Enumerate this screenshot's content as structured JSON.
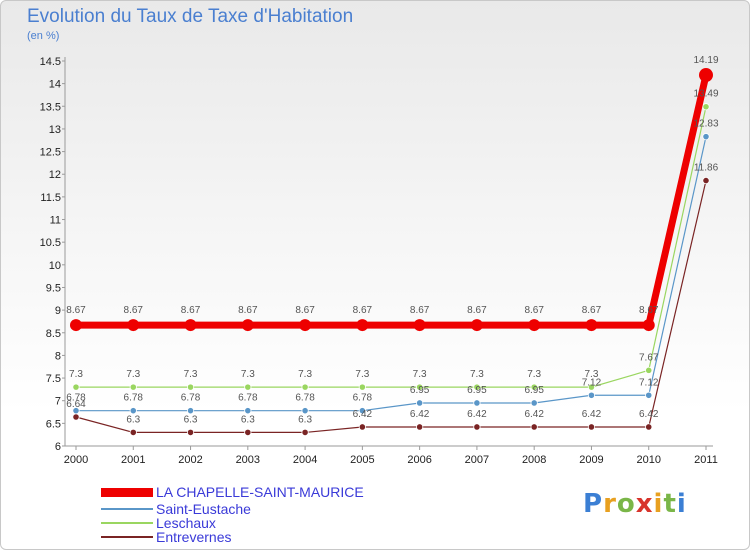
{
  "header": {
    "title": "Evolution du Taux de Taxe d'Habitation",
    "unit": "(en %)"
  },
  "chart_data": {
    "type": "line",
    "title": "Evolution du Taux de Taxe d'Habitation",
    "ylabel": "(en %)",
    "xlabel": "",
    "ylim": [
      6,
      14.5
    ],
    "yticks": [
      6,
      6.5,
      7,
      7.5,
      8,
      8.5,
      9,
      9.5,
      10,
      10.5,
      11,
      11.5,
      12,
      12.5,
      13,
      13.5,
      14,
      14.5
    ],
    "x": [
      "2000",
      "2001",
      "2002",
      "2003",
      "2004",
      "2005",
      "2006",
      "2007",
      "2008",
      "2009",
      "2010",
      "2011"
    ],
    "series": [
      {
        "name": "LA CHAPELLE-SAINT-MAURICE",
        "color": "#ee0000",
        "thick": true,
        "values": [
          8.67,
          8.67,
          8.67,
          8.67,
          8.67,
          8.67,
          8.67,
          8.67,
          8.67,
          8.67,
          8.67,
          14.19
        ],
        "labels": [
          "8.67",
          "8.67",
          "8.67",
          "8.67",
          "8.67",
          "8.67",
          "8.67",
          "8.67",
          "8.67",
          "8.67",
          "8.67",
          "14.19"
        ]
      },
      {
        "name": "Saint-Eustache",
        "color": "#5a96c8",
        "thick": false,
        "values": [
          6.78,
          6.78,
          6.78,
          6.78,
          6.78,
          6.78,
          6.95,
          6.95,
          6.95,
          7.12,
          7.12,
          12.83
        ],
        "labels": [
          "6.78",
          "6.78",
          "6.78",
          "6.78",
          "6.78",
          "6.78",
          "6.95",
          "6.95",
          "6.95",
          "7.12",
          "7.12",
          "12.83"
        ]
      },
      {
        "name": "Leschaux",
        "color": "#9ad660",
        "thick": false,
        "values": [
          7.3,
          7.3,
          7.3,
          7.3,
          7.3,
          7.3,
          7.3,
          7.3,
          7.3,
          7.3,
          7.67,
          13.49
        ],
        "labels": [
          "7.3",
          "7.3",
          "7.3",
          "7.3",
          "7.3",
          "7.3",
          "7.3",
          "7.3",
          "7.3",
          "7.3",
          "7.67",
          "13.49"
        ]
      },
      {
        "name": "Entrevernes",
        "color": "#7a2424",
        "thick": false,
        "values": [
          6.64,
          6.3,
          6.3,
          6.3,
          6.3,
          6.42,
          6.42,
          6.42,
          6.42,
          6.42,
          6.42,
          11.86
        ],
        "labels": [
          "6.64",
          "6.3",
          "6.3",
          "6.3",
          "6.3",
          "6.42",
          "6.42",
          "6.42",
          "6.42",
          "6.42",
          "6.42",
          "11.86"
        ]
      }
    ]
  },
  "legend": {
    "items": [
      {
        "label": "LA CHAPELLE-SAINT-MAURICE",
        "color": "#ee0000"
      },
      {
        "label": "Saint-Eustache",
        "color": "#5a96c8"
      },
      {
        "label": "Leschaux",
        "color": "#9ad660"
      },
      {
        "label": "Entrevernes",
        "color": "#7a2424"
      }
    ]
  },
  "logo": {
    "letters": [
      "P",
      "r",
      "o",
      "x",
      "i",
      "t",
      "i"
    ],
    "colors": [
      "#3b7fd4",
      "#e8a020",
      "#7ab648",
      "#d8342c",
      "#e8a020",
      "#7ab648",
      "#3b7fd4"
    ]
  }
}
